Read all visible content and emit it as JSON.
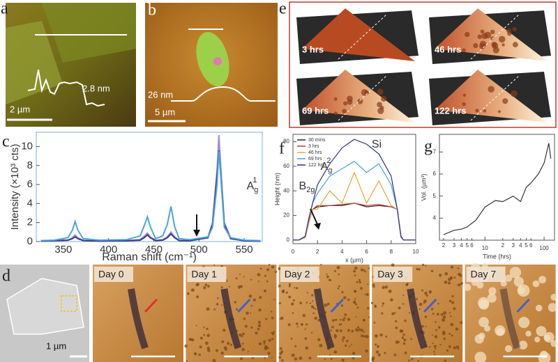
{
  "panels": {
    "a": {
      "label": "a",
      "height": "2.8 nm",
      "scale": "2 µm"
    },
    "b": {
      "label": "b",
      "height": "26 nm",
      "scale": "5 µm"
    },
    "e": {
      "label": "e",
      "times": [
        "3 hrs",
        "46 hrs",
        "69 hrs",
        "122 hrs"
      ]
    },
    "d": {
      "label": "d",
      "scale": "1 µm",
      "days": [
        "Day 0",
        "Day 1",
        "Day 2",
        "Day 3",
        "Day 7"
      ]
    }
  },
  "chart_data": [
    {
      "type": "line",
      "label": "c",
      "xlabel": "Raman shift (cm⁻¹)",
      "ylabel": "Intensity (×10³ cts)",
      "annotations": [
        {
          "base": "A",
          "sub": "g",
          "sup": "1"
        },
        {
          "base": "B",
          "sub": "2g"
        },
        {
          "base": "A",
          "sub": "g",
          "sup": "2"
        },
        {
          "base": "Si"
        }
      ],
      "x": [
        325,
        340,
        355,
        360,
        363,
        366,
        372,
        390,
        420,
        435,
        440,
        443,
        446,
        452,
        460,
        465,
        469,
        473,
        478,
        490,
        510,
        515,
        520,
        522,
        524,
        528,
        535,
        550,
        568
      ],
      "series": [
        {
          "color": "#9b8fc9",
          "values": [
            0.05,
            0.08,
            0.15,
            0.4,
            0.7,
            0.4,
            0.12,
            0.08,
            0.1,
            0.2,
            0.6,
            0.9,
            0.5,
            0.12,
            0.2,
            0.5,
            1.0,
            0.5,
            0.12,
            0.1,
            0.5,
            2,
            7.5,
            11.2,
            8,
            2,
            0.4,
            0.1,
            0.05
          ]
        },
        {
          "color": "#3c3a8a",
          "values": [
            0.05,
            0.08,
            0.15,
            0.3,
            0.5,
            0.3,
            0.1,
            0.06,
            0.08,
            0.15,
            0.45,
            0.7,
            0.4,
            0.1,
            0.15,
            0.4,
            0.8,
            0.4,
            0.1,
            0.08,
            0.4,
            1.8,
            7,
            9.6,
            7.2,
            1.8,
            0.3,
            0.08,
            0.04
          ]
        },
        {
          "color": "#4aa3df",
          "values": [
            0.1,
            0.15,
            0.4,
            1.2,
            2.1,
            1.2,
            0.3,
            0.15,
            0.2,
            0.6,
            1.8,
            2.6,
            1.6,
            0.3,
            0.6,
            1.8,
            3.7,
            1.6,
            0.3,
            0.2,
            0.5,
            1.5,
            6,
            9.5,
            7,
            1.5,
            0.4,
            0.15,
            0.1
          ]
        }
      ],
      "xlim": [
        320,
        570
      ],
      "ylim": [
        0,
        11.5
      ],
      "xticks": [
        350,
        400,
        450,
        500,
        550
      ],
      "yticks": [
        0,
        2,
        4,
        6,
        8,
        10
      ]
    },
    {
      "type": "line",
      "label": "f",
      "xlabel": "x (µm)",
      "ylabel": "Height (nm)",
      "legend": "top-left",
      "x": [
        0,
        0.5,
        1,
        1.3,
        1.6,
        2,
        3,
        4,
        5,
        6,
        7,
        8,
        8.5,
        8.8,
        9,
        10
      ],
      "series": [
        {
          "name": "30 mins",
          "color": "#222222",
          "values": [
            0,
            0,
            2,
            15,
            25,
            27,
            28,
            28,
            30,
            27,
            28,
            27,
            25,
            2,
            0,
            0
          ]
        },
        {
          "name": "3 hrs",
          "color": "#c0392b",
          "values": [
            0,
            0,
            2,
            15,
            25,
            28,
            28,
            29,
            30,
            28,
            29,
            27,
            25,
            2,
            0,
            0
          ]
        },
        {
          "name": "46 hrs",
          "color": "#e8a33c",
          "values": [
            0,
            0,
            2,
            14,
            25,
            25,
            40,
            30,
            55,
            30,
            48,
            28,
            25,
            2,
            0,
            0
          ]
        },
        {
          "name": "69 hrs",
          "color": "#4aa3df",
          "values": [
            0,
            0,
            3,
            18,
            30,
            38,
            52,
            58,
            64,
            55,
            62,
            45,
            25,
            3,
            0,
            0
          ]
        },
        {
          "name": "122 hrs",
          "color": "#2e2f8f",
          "values": [
            0,
            0,
            3,
            18,
            30,
            45,
            62,
            75,
            82,
            78,
            70,
            52,
            25,
            3,
            0,
            0
          ]
        }
      ],
      "xlim": [
        0,
        10
      ],
      "ylim": [
        -3,
        86
      ],
      "xticks": [
        0,
        2,
        4,
        6,
        8,
        10
      ],
      "yticks": [
        0,
        20,
        40,
        60,
        80
      ]
    },
    {
      "type": "line",
      "label": "g",
      "log_x": true,
      "xlabel": "Time (hrs)",
      "ylabel": "Vol. (µm³)",
      "x": [
        2,
        3,
        4,
        5,
        7,
        10,
        15,
        20,
        30,
        40,
        50,
        60,
        80,
        100,
        120,
        130
      ],
      "series": [
        {
          "color": "#333333",
          "values": [
            3.25,
            3.45,
            3.5,
            3.6,
            3.9,
            4.5,
            4.8,
            4.75,
            5.0,
            4.75,
            5.4,
            5.6,
            6.0,
            6.5,
            7.4,
            6.7
          ]
        }
      ],
      "xlim": [
        1.7,
        150
      ],
      "ylim": [
        3,
        7.8
      ],
      "xticks": [
        2,
        3,
        4,
        5,
        6,
        10,
        {
          "value": 20,
          "label": "2"
        },
        {
          "value": 30,
          "label": "3"
        },
        {
          "value": 40,
          "label": "4"
        },
        {
          "value": 50,
          "label": "5"
        },
        {
          "value": 60,
          "label": "6"
        },
        100
      ],
      "yticks": [
        4,
        5,
        6,
        7
      ]
    }
  ]
}
